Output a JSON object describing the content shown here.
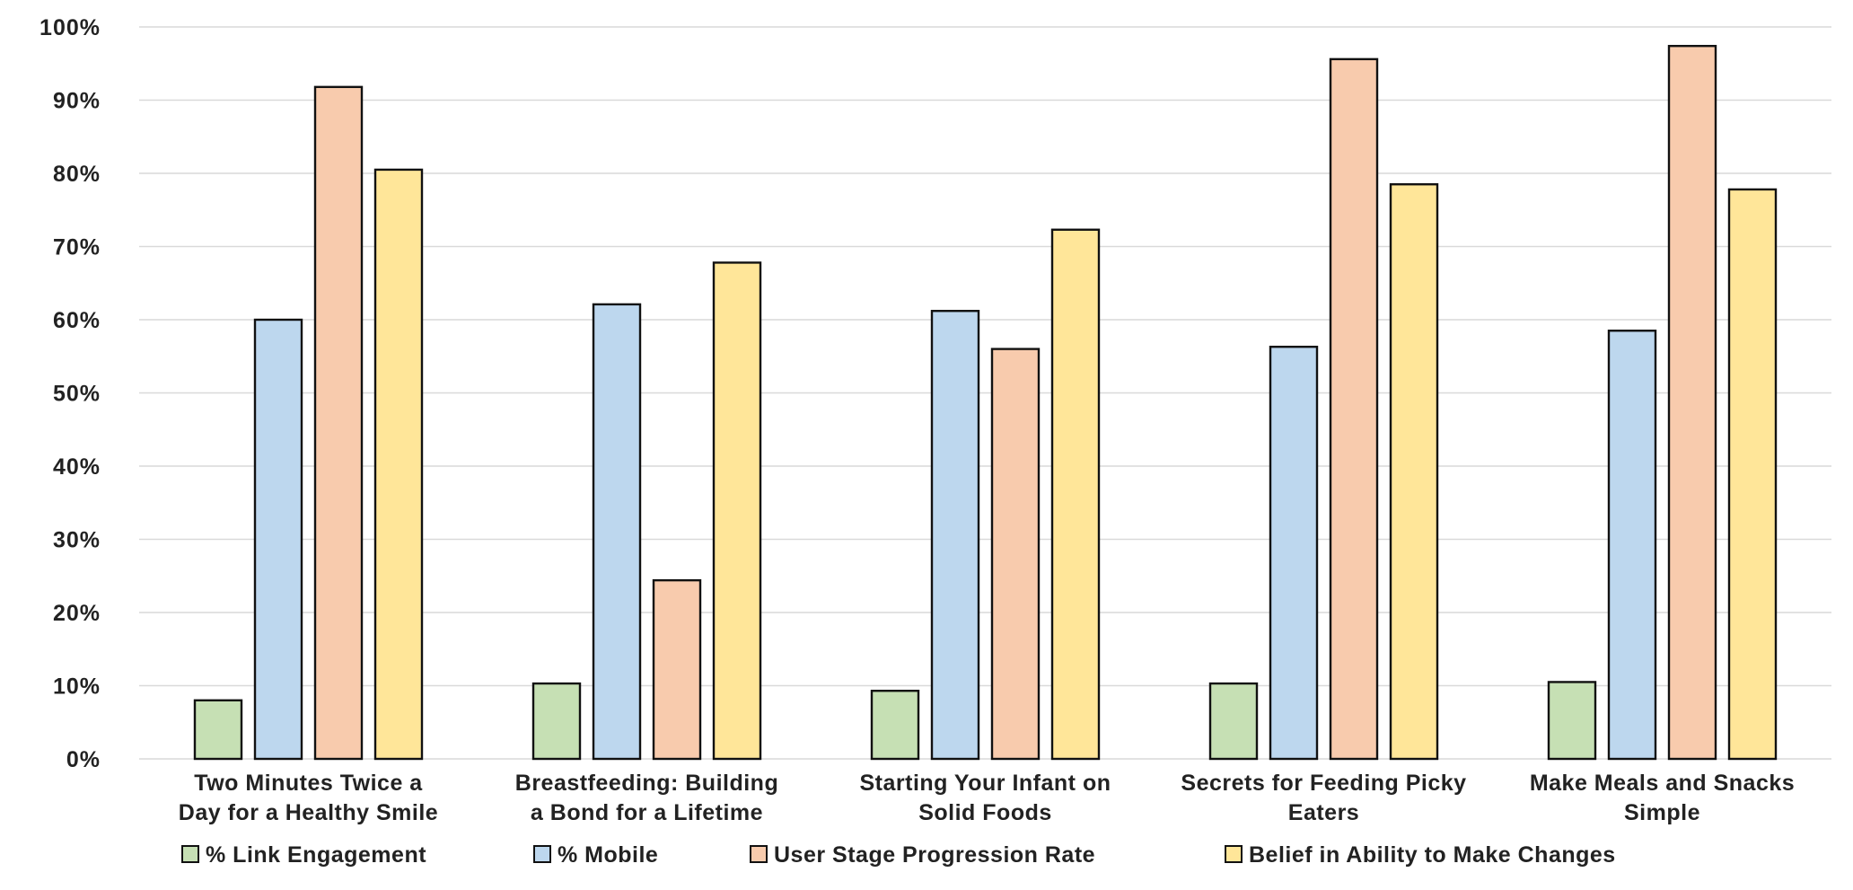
{
  "chart_data": {
    "type": "bar",
    "title": "",
    "xlabel": "",
    "ylabel": "",
    "ylim": [
      0,
      100
    ],
    "y_ticks": [
      "0%",
      "10%",
      "20%",
      "30%",
      "40%",
      "50%",
      "60%",
      "70%",
      "80%",
      "90%",
      "100%"
    ],
    "grid": true,
    "legend_position": "bottom",
    "categories": [
      [
        "Two Minutes Twice a",
        "Day for a Healthy Smile"
      ],
      [
        "Breastfeeding: Building",
        "a Bond for a Lifetime"
      ],
      [
        "Starting Your Infant on",
        "Solid Foods"
      ],
      [
        "Secrets for Feeding Picky",
        "Eaters"
      ],
      [
        "Make Meals and Snacks",
        "Simple"
      ]
    ],
    "series": [
      {
        "name": "% Link Engagement",
        "color": "#c6e0b4",
        "values": [
          8,
          10.3,
          9.3,
          10.3,
          10.5
        ]
      },
      {
        "name": "% Mobile",
        "color": "#bdd7ee",
        "values": [
          60,
          62.1,
          61.2,
          56.3,
          58.5
        ]
      },
      {
        "name": "User Stage Progression Rate",
        "color": "#f8cbad",
        "values": [
          91.8,
          24.4,
          56,
          95.6,
          97.4
        ]
      },
      {
        "name": "Belief in Ability to Make Changes",
        "color": "#ffe699",
        "values": [
          80.5,
          67.8,
          72.3,
          78.5,
          77.8
        ]
      }
    ]
  }
}
